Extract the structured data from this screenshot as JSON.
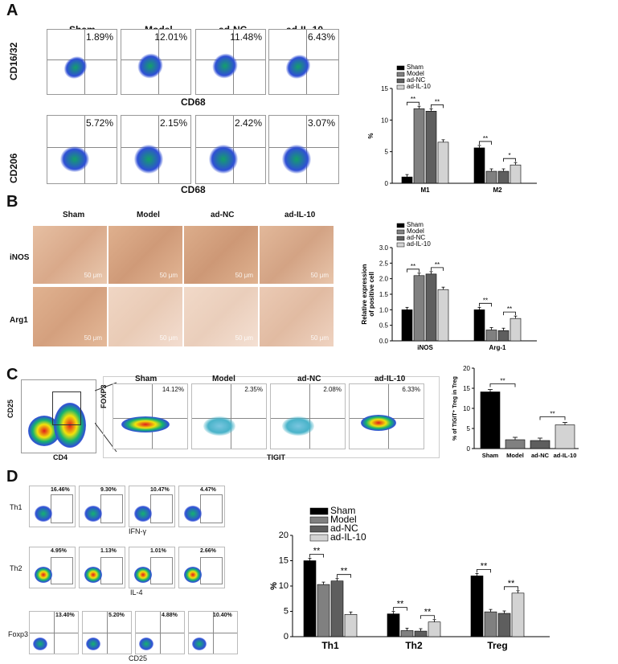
{
  "panels": {
    "A": "A",
    "B": "B",
    "C": "C",
    "D": "D"
  },
  "groups": [
    "Sham",
    "Model",
    "ad-NC",
    "ad-IL-10"
  ],
  "A": {
    "row1_y": "CD16/32",
    "row1_x": "CD68",
    "row2_y": "CD206",
    "row2_x": "CD68",
    "row1_pct": [
      "1.89%",
      "12.01%",
      "11.48%",
      "6.43%"
    ],
    "row2_pct": [
      "5.72%",
      "2.15%",
      "2.42%",
      "3.07%"
    ]
  },
  "B": {
    "rows": [
      "iNOS",
      "Arg1"
    ],
    "scale": "50 μm"
  },
  "C": {
    "cd25": "CD25",
    "cd4": "CD4",
    "foxp3": "FOXP3",
    "tigit": "TIGIT",
    "pct": [
      "14.12%",
      "2.35%",
      "2.08%",
      "6.33%"
    ]
  },
  "D": {
    "rows": [
      "Th1",
      "Th2",
      "Foxp3"
    ],
    "xlabels": [
      "IFN-γ",
      "IL-4",
      "CD25"
    ],
    "th1_pct": [
      "16.46%",
      "9.30%",
      "10.47%",
      "4.47%"
    ],
    "th2_pct": [
      "4.95%",
      "1.13%",
      "1.01%",
      "2.66%"
    ],
    "foxp3_pct": [
      "13.40%",
      "5.20%",
      "4.88%",
      "10.40%"
    ]
  },
  "sig": "**",
  "sig1": "*",
  "colors": {
    "sham": "#000000",
    "model": "#808080",
    "adnc": "#5e5e5e",
    "adil10": "#d3d3d3"
  },
  "chart_data": [
    {
      "type": "bar",
      "panel": "A",
      "categories": [
        "M1",
        "M2"
      ],
      "series": [
        {
          "name": "Sham",
          "values": [
            1.0,
            5.6
          ]
        },
        {
          "name": "Model",
          "values": [
            11.8,
            1.9
          ]
        },
        {
          "name": "ad-NC",
          "values": [
            11.4,
            1.9
          ]
        },
        {
          "name": "ad-IL-10",
          "values": [
            6.5,
            2.9
          ]
        }
      ],
      "ylabel": "%",
      "ylim": [
        0,
        15
      ],
      "yticks": [
        "0",
        "5",
        "10",
        "15"
      ],
      "legend": "top-left"
    },
    {
      "type": "bar",
      "panel": "B",
      "categories": [
        "iNOS",
        "Arg-1"
      ],
      "series": [
        {
          "name": "Sham",
          "values": [
            1.0,
            1.0
          ]
        },
        {
          "name": "Model",
          "values": [
            2.1,
            0.35
          ]
        },
        {
          "name": "ad-NC",
          "values": [
            2.15,
            0.33
          ]
        },
        {
          "name": "ad-IL-10",
          "values": [
            1.65,
            0.72
          ]
        }
      ],
      "ylabel": "Relative expression of positive cell",
      "ylim": [
        0,
        3.0
      ],
      "yticks": [
        "0.0",
        "0.5",
        "1.0",
        "1.5",
        "2.0",
        "2.5",
        "3.0"
      ],
      "legend": "top-left"
    },
    {
      "type": "bar",
      "panel": "C",
      "categories": [
        "Sham",
        "Model",
        "ad-NC",
        "ad-IL-10"
      ],
      "values": [
        14.1,
        2.2,
        2.0,
        5.9
      ],
      "ylabel": "% of TIGIT⁺ Treg in Treg",
      "ylim": [
        0,
        20
      ],
      "yticks": [
        "0",
        "5",
        "10",
        "15",
        "20"
      ]
    },
    {
      "type": "bar",
      "panel": "D",
      "categories": [
        "Th1",
        "Th2",
        "Treg"
      ],
      "series": [
        {
          "name": "Sham",
          "values": [
            15.0,
            4.5,
            12.0
          ]
        },
        {
          "name": "Model",
          "values": [
            10.3,
            1.2,
            4.9
          ]
        },
        {
          "name": "ad-NC",
          "values": [
            11.0,
            1.1,
            4.6
          ]
        },
        {
          "name": "ad-IL-10",
          "values": [
            4.4,
            2.9,
            8.6
          ]
        }
      ],
      "ylabel": "%",
      "ylim": [
        0,
        20
      ],
      "yticks": [
        "0",
        "5",
        "10",
        "15",
        "20"
      ],
      "legend": "top-left"
    }
  ]
}
